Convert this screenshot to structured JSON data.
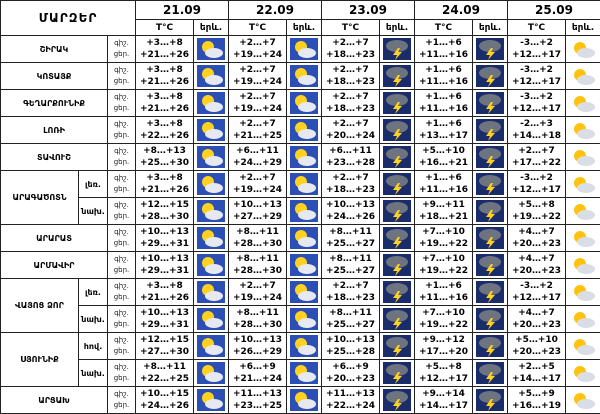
{
  "header": {
    "title": "ՄԱՐԶԵՐ",
    "dates": [
      "21.09",
      "22.09",
      "23.09",
      "24.09",
      "25.09"
    ],
    "temp_label": "T°C",
    "icon_label": "երև.",
    "night": "գիշ.",
    "day": "ցեր."
  },
  "regions": [
    {
      "name": "ՇԻՐԱԿ",
      "rows": [
        {
          "temps": [
            [
              "+3…+8",
              "+21…+26"
            ],
            [
              "+2…+7",
              "+19…+24"
            ],
            [
              "+2…+7",
              "+18…+23"
            ],
            [
              "+1…+6",
              "+11…+16"
            ],
            [
              "-3…+2",
              "+12…+17"
            ]
          ]
        }
      ]
    },
    {
      "name": "ԿՈՏԱՅՔ",
      "rows": [
        {
          "temps": [
            [
              "+3…+8",
              "+21…+26"
            ],
            [
              "+2…+7",
              "+19…+24"
            ],
            [
              "+2…+7",
              "+18…+23"
            ],
            [
              "+1…+6",
              "+11…+16"
            ],
            [
              "-3…+2",
              "+12…+17"
            ]
          ]
        }
      ]
    },
    {
      "name": "ԳԵՂԱՐՔՈՒՆԻՔ",
      "rows": [
        {
          "temps": [
            [
              "+3…+8",
              "+21…+26"
            ],
            [
              "+2…+7",
              "+19…+24"
            ],
            [
              "+2…+7",
              "+18…+23"
            ],
            [
              "+1…+6",
              "+11…+16"
            ],
            [
              "-3…+2",
              "+12…+17"
            ]
          ]
        }
      ]
    },
    {
      "name": "ԼՈՌԻ",
      "rows": [
        {
          "temps": [
            [
              "+3…+8",
              "+22…+26"
            ],
            [
              "+2…+7",
              "+21…+25"
            ],
            [
              "+2…+7",
              "+20…+24"
            ],
            [
              "+1…+6",
              "+13…+17"
            ],
            [
              "-2…+3",
              "+14…+18"
            ]
          ]
        }
      ]
    },
    {
      "name": "ՏԱՎՈՒՇ",
      "rows": [
        {
          "temps": [
            [
              "+8…+13",
              "+25…+30"
            ],
            [
              "+6…+11",
              "+24…+29"
            ],
            [
              "+6…+11",
              "+23…+28"
            ],
            [
              "+5…+10",
              "+16…+21"
            ],
            [
              "+2…+7",
              "+17…+22"
            ]
          ]
        }
      ]
    },
    {
      "name": "ԱՐԱԳԱԾՈՏՆ",
      "rows": [
        {
          "sub": "լեռ.",
          "temps": [
            [
              "+3…+8",
              "+21…+26"
            ],
            [
              "+2…+7",
              "+19…+24"
            ],
            [
              "+2…+7",
              "+18…+23"
            ],
            [
              "+1…+6",
              "+11…+16"
            ],
            [
              "-3…+2",
              "+12…+17"
            ]
          ]
        },
        {
          "sub": "նախ.",
          "temps": [
            [
              "+12…+15",
              "+28…+30"
            ],
            [
              "+10…+13",
              "+27…+29"
            ],
            [
              "+10…+13",
              "+24…+26"
            ],
            [
              "+9…+11",
              "+18…+21"
            ],
            [
              "+5…+8",
              "+19…+22"
            ]
          ]
        }
      ]
    },
    {
      "name": "ԱՐԱՐԱՏ",
      "rows": [
        {
          "temps": [
            [
              "+10…+13",
              "+29…+31"
            ],
            [
              "+8…+11",
              "+28…+30"
            ],
            [
              "+8…+11",
              "+25…+27"
            ],
            [
              "+7…+10",
              "+19…+22"
            ],
            [
              "+4…+7",
              "+20…+23"
            ]
          ]
        }
      ]
    },
    {
      "name": "ԱՐՄԱՎԻՐ",
      "rows": [
        {
          "temps": [
            [
              "+10…+13",
              "+29…+31"
            ],
            [
              "+8…+11",
              "+28…+30"
            ],
            [
              "+8…+11",
              "+25…+27"
            ],
            [
              "+7…+10",
              "+19…+22"
            ],
            [
              "+4…+7",
              "+20…+23"
            ]
          ]
        }
      ]
    },
    {
      "name": "ՎԱՅՈՑ ՁՈՐ",
      "rows": [
        {
          "sub": "լեռ.",
          "temps": [
            [
              "+3…+8",
              "+21…+26"
            ],
            [
              "+2…+7",
              "+19…+24"
            ],
            [
              "+2…+7",
              "+18…+23"
            ],
            [
              "+1…+6",
              "+11…+16"
            ],
            [
              "-3…+2",
              "+12…+17"
            ]
          ]
        },
        {
          "sub": "նախ.",
          "temps": [
            [
              "+10…+13",
              "+29…+31"
            ],
            [
              "+8…+11",
              "+28…+30"
            ],
            [
              "+8…+11",
              "+25…+27"
            ],
            [
              "+7…+10",
              "+19…+22"
            ],
            [
              "+4…+7",
              "+20…+23"
            ]
          ]
        }
      ]
    },
    {
      "name": "ՍՅՈՒՆԻՔ",
      "rows": [
        {
          "sub": "հով.",
          "temps": [
            [
              "+12…+15",
              "+27…+30"
            ],
            [
              "+10…+13",
              "+26…+29"
            ],
            [
              "+10…+13",
              "+25…+28"
            ],
            [
              "+9…+12",
              "+17…+20"
            ],
            [
              "+5…+10",
              "+20…+23"
            ]
          ]
        },
        {
          "sub": "նախ.",
          "temps": [
            [
              "+8…+11",
              "+22…+25"
            ],
            [
              "+6…+9",
              "+21…+24"
            ],
            [
              "+6…+9",
              "+20…+23"
            ],
            [
              "+5…+8",
              "+12…+17"
            ],
            [
              "+2…+5",
              "+14…+17"
            ]
          ]
        }
      ]
    },
    {
      "name": "ԱՐՑԱԽ",
      "rows": [
        {
          "temps": [
            [
              "+10…+15",
              "+24…+26"
            ],
            [
              "+11…+13",
              "+23…+25"
            ],
            [
              "+11…+13",
              "+22…+24"
            ],
            [
              "+9…+14",
              "+14…+17"
            ],
            [
              "+5…+9",
              "+16…+19"
            ]
          ]
        }
      ]
    }
  ]
}
